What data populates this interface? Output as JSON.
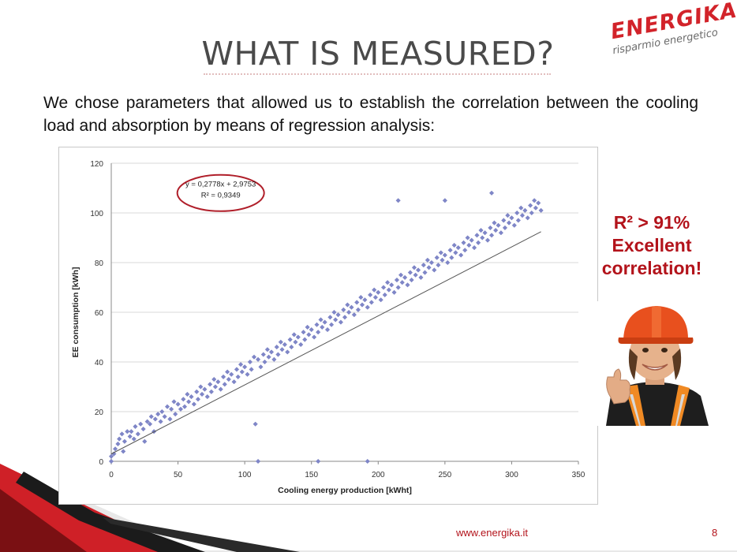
{
  "slide": {
    "title": "WHAT IS MEASURED?",
    "intro": "We chose parameters that allowed us to establish the correlation between the cooling load and absorption by means of regression analysis:",
    "callout": {
      "line1": "R² > 91%",
      "line2": "Excellent",
      "line3": "correlation!"
    },
    "footer_url": "www.energika.it",
    "page_number": "8"
  },
  "logo": {
    "name": "ENERGIKA",
    "tagline": "risparmio energetico"
  },
  "photo": {
    "subject": "child in orange hard hat giving thumbs up"
  },
  "colors": {
    "accent_red": "#b3131b",
    "marker": "#7f86c8",
    "trend": "#555555",
    "ellipse": "#b01f2a"
  },
  "chart_data": {
    "type": "scatter",
    "xlabel": "Cooling energy production  [kWht]",
    "ylabel": "EE consumption [kWh]",
    "xlim": [
      0,
      350
    ],
    "ylim": [
      0,
      120
    ],
    "xticks": [
      0,
      50,
      100,
      150,
      200,
      250,
      300,
      350
    ],
    "yticks": [
      0,
      20,
      40,
      60,
      80,
      100,
      120
    ],
    "grid": "horizontal",
    "annotation": {
      "equation": "y = 0,2778x + 2,9753",
      "r2": "R² = 0,9349"
    },
    "trendline": {
      "slope": 0.2778,
      "intercept": 2.9753,
      "x_range": [
        0,
        322
      ]
    },
    "series": [
      {
        "points": [
          [
            0,
            0
          ],
          [
            0,
            2
          ],
          [
            2,
            3
          ],
          [
            3,
            5
          ],
          [
            5,
            7
          ],
          [
            6,
            9
          ],
          [
            8,
            11
          ],
          [
            9,
            4
          ],
          [
            10,
            8
          ],
          [
            12,
            12
          ],
          [
            14,
            10
          ],
          [
            15,
            12
          ],
          [
            17,
            9
          ],
          [
            18,
            14
          ],
          [
            20,
            11
          ],
          [
            22,
            15
          ],
          [
            24,
            13
          ],
          [
            25,
            8
          ],
          [
            27,
            16
          ],
          [
            29,
            15
          ],
          [
            30,
            18
          ],
          [
            32,
            12
          ],
          [
            33,
            17
          ],
          [
            35,
            19
          ],
          [
            37,
            16
          ],
          [
            38,
            20
          ],
          [
            40,
            18
          ],
          [
            42,
            22
          ],
          [
            44,
            17
          ],
          [
            45,
            21
          ],
          [
            47,
            24
          ],
          [
            48,
            19
          ],
          [
            50,
            23
          ],
          [
            52,
            21
          ],
          [
            54,
            25
          ],
          [
            55,
            22
          ],
          [
            57,
            27
          ],
          [
            58,
            24
          ],
          [
            60,
            26
          ],
          [
            62,
            23
          ],
          [
            64,
            28
          ],
          [
            65,
            25
          ],
          [
            67,
            30
          ],
          [
            68,
            27
          ],
          [
            70,
            29
          ],
          [
            72,
            26
          ],
          [
            74,
            31
          ],
          [
            75,
            28
          ],
          [
            77,
            33
          ],
          [
            78,
            30
          ],
          [
            80,
            32
          ],
          [
            82,
            29
          ],
          [
            84,
            34
          ],
          [
            85,
            31
          ],
          [
            87,
            36
          ],
          [
            88,
            33
          ],
          [
            90,
            35
          ],
          [
            92,
            32
          ],
          [
            94,
            37
          ],
          [
            95,
            34
          ],
          [
            97,
            39
          ],
          [
            98,
            36
          ],
          [
            100,
            38
          ],
          [
            102,
            35
          ],
          [
            104,
            40
          ],
          [
            105,
            37
          ],
          [
            107,
            42
          ],
          [
            108,
            15
          ],
          [
            110,
            41
          ],
          [
            112,
            38
          ],
          [
            114,
            43
          ],
          [
            115,
            40
          ],
          [
            117,
            45
          ],
          [
            118,
            42
          ],
          [
            120,
            44
          ],
          [
            122,
            41
          ],
          [
            124,
            46
          ],
          [
            125,
            43
          ],
          [
            127,
            48
          ],
          [
            128,
            45
          ],
          [
            130,
            47
          ],
          [
            132,
            44
          ],
          [
            134,
            49
          ],
          [
            135,
            46
          ],
          [
            137,
            51
          ],
          [
            138,
            48
          ],
          [
            140,
            50
          ],
          [
            142,
            47
          ],
          [
            144,
            52
          ],
          [
            145,
            49
          ],
          [
            147,
            54
          ],
          [
            148,
            51
          ],
          [
            150,
            53
          ],
          [
            152,
            50
          ],
          [
            154,
            55
          ],
          [
            155,
            52
          ],
          [
            157,
            57
          ],
          [
            158,
            54
          ],
          [
            160,
            56
          ],
          [
            162,
            53
          ],
          [
            164,
            58
          ],
          [
            165,
            55
          ],
          [
            167,
            60
          ],
          [
            168,
            57
          ],
          [
            170,
            59
          ],
          [
            172,
            56
          ],
          [
            174,
            61
          ],
          [
            175,
            58
          ],
          [
            177,
            63
          ],
          [
            178,
            60
          ],
          [
            180,
            62
          ],
          [
            182,
            59
          ],
          [
            184,
            64
          ],
          [
            185,
            61
          ],
          [
            187,
            66
          ],
          [
            188,
            63
          ],
          [
            190,
            65
          ],
          [
            192,
            62
          ],
          [
            194,
            67
          ],
          [
            195,
            64
          ],
          [
            197,
            69
          ],
          [
            198,
            66
          ],
          [
            200,
            68
          ],
          [
            202,
            65
          ],
          [
            204,
            70
          ],
          [
            205,
            67
          ],
          [
            207,
            72
          ],
          [
            208,
            69
          ],
          [
            210,
            71
          ],
          [
            212,
            68
          ],
          [
            214,
            73
          ],
          [
            215,
            70
          ],
          [
            217,
            75
          ],
          [
            218,
            72
          ],
          [
            220,
            74
          ],
          [
            222,
            71
          ],
          [
            224,
            76
          ],
          [
            225,
            73
          ],
          [
            227,
            78
          ],
          [
            228,
            75
          ],
          [
            230,
            77
          ],
          [
            232,
            74
          ],
          [
            234,
            79
          ],
          [
            235,
            76
          ],
          [
            237,
            81
          ],
          [
            238,
            78
          ],
          [
            240,
            80
          ],
          [
            242,
            77
          ],
          [
            244,
            82
          ],
          [
            245,
            79
          ],
          [
            247,
            84
          ],
          [
            248,
            81
          ],
          [
            250,
            83
          ],
          [
            252,
            80
          ],
          [
            254,
            85
          ],
          [
            255,
            82
          ],
          [
            257,
            87
          ],
          [
            258,
            84
          ],
          [
            260,
            86
          ],
          [
            262,
            83
          ],
          [
            264,
            88
          ],
          [
            265,
            85
          ],
          [
            267,
            90
          ],
          [
            268,
            87
          ],
          [
            270,
            89
          ],
          [
            272,
            86
          ],
          [
            274,
            91
          ],
          [
            275,
            88
          ],
          [
            277,
            93
          ],
          [
            278,
            90
          ],
          [
            280,
            92
          ],
          [
            282,
            89
          ],
          [
            284,
            94
          ],
          [
            285,
            91
          ],
          [
            287,
            96
          ],
          [
            288,
            93
          ],
          [
            290,
            95
          ],
          [
            292,
            92
          ],
          [
            294,
            97
          ],
          [
            295,
            94
          ],
          [
            297,
            99
          ],
          [
            298,
            96
          ],
          [
            300,
            98
          ],
          [
            302,
            95
          ],
          [
            304,
            100
          ],
          [
            305,
            97
          ],
          [
            307,
            102
          ],
          [
            308,
            99
          ],
          [
            310,
            101
          ],
          [
            312,
            98
          ],
          [
            314,
            103
          ],
          [
            315,
            100
          ],
          [
            317,
            105
          ],
          [
            318,
            102
          ],
          [
            320,
            104
          ],
          [
            322,
            101
          ],
          [
            110,
            0
          ],
          [
            155,
            0
          ],
          [
            192,
            0
          ],
          [
            215,
            105
          ],
          [
            250,
            105
          ],
          [
            285,
            108
          ]
        ]
      }
    ]
  }
}
